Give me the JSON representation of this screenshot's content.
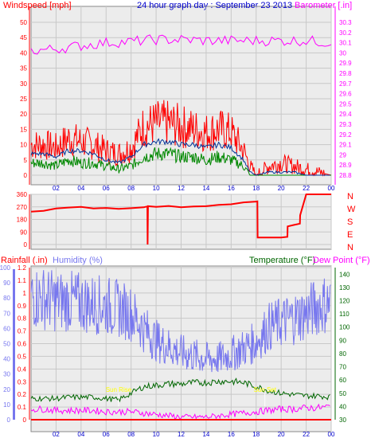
{
  "header": {
    "windspeed_label": "Windspeed [mph]",
    "date_title": "24 hour graph day : September 23 2013",
    "barometer_label": "Barometer [.in]"
  },
  "rain_header": {
    "rainfall_label": "Rainfall (.in)",
    "humidity_label": "Humidity (%)",
    "temperature_label": "Temperature (°F)",
    "dewpoint_label": "Dew Point (°F)"
  },
  "colors": {
    "windspeed": "#ff0000",
    "wind_avg": "#003399",
    "wind_low": "#008800",
    "barometer": "#ff00ff",
    "direction": "#ff0000",
    "rainfall": "#ff0000",
    "humidity": "#7777ee",
    "temperature": "#006600",
    "dewpoint": "#ff00ff",
    "background": "#ececec",
    "sun_markers": "#ffff00"
  },
  "chart_data": [
    {
      "type": "line",
      "panel": "wind_baro",
      "x_ticks": [
        "02",
        "04",
        "06",
        "08",
        "10",
        "12",
        "14",
        "16",
        "18",
        "20",
        "22",
        "00"
      ],
      "wind_axis": {
        "ticks": [
          "0",
          "5",
          "10",
          "15",
          "20",
          "25",
          "30",
          "35",
          "40",
          "45",
          "50"
        ],
        "ylim": [
          0,
          50
        ]
      },
      "baro_axis": {
        "ticks": [
          "28.8",
          "28.9",
          "29",
          "29.1",
          "29.2",
          "29.3",
          "29.4",
          "29.5",
          "29.6",
          "29.7",
          "29.8",
          "29.9",
          "30",
          "30.1",
          "30.2",
          "30.3"
        ],
        "ylim": [
          28.8,
          30.3
        ]
      },
      "series": [
        {
          "name": "Windspeed [mph]",
          "x": [
            0,
            1,
            2,
            3,
            4,
            5,
            6,
            7,
            8,
            9,
            10,
            11,
            12,
            13,
            14,
            15,
            16,
            17,
            17.5,
            18,
            19,
            20,
            21,
            22,
            23,
            24
          ],
          "values": [
            10,
            10,
            9,
            12,
            11,
            10,
            8,
            7,
            9,
            16,
            17,
            17,
            16,
            15,
            14,
            15,
            14,
            8,
            3,
            0,
            3,
            4,
            3,
            2,
            1,
            0
          ]
        },
        {
          "name": "Wind average",
          "x": [
            0,
            1,
            2,
            3,
            4,
            5,
            6,
            7,
            8,
            9,
            10,
            11,
            12,
            13,
            14,
            15,
            16,
            17,
            17.5,
            18,
            19,
            20,
            21,
            22,
            23,
            24
          ],
          "values": [
            7,
            7,
            6,
            8,
            8,
            7,
            5,
            4,
            6,
            10,
            11,
            11,
            10,
            10,
            9,
            10,
            9,
            5,
            1,
            0,
            1,
            1,
            1,
            0,
            0,
            0
          ]
        },
        {
          "name": "Wind low",
          "x": [
            0,
            1,
            2,
            3,
            4,
            5,
            6,
            7,
            8,
            9,
            10,
            11,
            12,
            13,
            14,
            15,
            16,
            17,
            17.5,
            18,
            19,
            20,
            21,
            22,
            23,
            24
          ],
          "values": [
            4,
            4,
            3,
            5,
            4,
            4,
            3,
            2,
            3,
            6,
            7,
            7,
            6,
            6,
            5,
            6,
            5,
            3,
            0,
            0,
            0,
            0,
            0,
            0,
            0,
            0
          ]
        },
        {
          "name": "Barometer [.in]",
          "x": [
            0,
            2,
            4,
            6,
            8,
            10,
            12,
            14,
            16,
            18,
            20,
            22,
            24
          ],
          "values": [
            30.02,
            30.04,
            30.07,
            30.1,
            30.11,
            30.13,
            30.13,
            30.12,
            30.12,
            30.12,
            30.12,
            30.12,
            30.1
          ]
        }
      ]
    },
    {
      "type": "line",
      "panel": "direction",
      "x_ticks": [
        "02",
        "04",
        "06",
        "08",
        "10",
        "12",
        "14",
        "16",
        "18",
        "20",
        "22",
        "00"
      ],
      "y_axis": {
        "ticks": [
          "0",
          "90",
          "180",
          "270",
          "360"
        ],
        "ylim": [
          0,
          360
        ]
      },
      "compass_labels": [
        "N",
        "W",
        "S",
        "E",
        "N"
      ],
      "series": [
        {
          "name": "Wind direction",
          "x": [
            0,
            1,
            2,
            3,
            4,
            5,
            6,
            7,
            8,
            9,
            9.3,
            9.32,
            9.35,
            10,
            11,
            12,
            13,
            14,
            15,
            16,
            17,
            18,
            18.1,
            18.12,
            19,
            20,
            20.5,
            20.52,
            21,
            21.5,
            21.52,
            22,
            24
          ],
          "values": [
            240,
            245,
            255,
            265,
            270,
            262,
            258,
            255,
            258,
            265,
            270,
            0,
            270,
            272,
            275,
            270,
            268,
            275,
            280,
            290,
            300,
            308,
            310,
            50,
            50,
            50,
            55,
            130,
            140,
            150,
            210,
            360,
            360
          ]
        }
      ]
    },
    {
      "type": "line",
      "panel": "rain_humidity_temperature",
      "x_ticks": [
        "02",
        "04",
        "06",
        "08",
        "10",
        "12",
        "14",
        "16",
        "18",
        "20",
        "22",
        "00"
      ],
      "rainfall_axis": {
        "ticks": [
          "0",
          "0.1",
          "0.2",
          "0.3",
          "0.4",
          "0.5",
          "0.6",
          "0.7",
          "0.8",
          "0.9",
          "1",
          "1.1",
          "1.2"
        ],
        "ylim": [
          0,
          1.2
        ]
      },
      "humidity_axis": {
        "ticks": [
          "0",
          "10",
          "20",
          "30",
          "40",
          "50",
          "60",
          "70",
          "80",
          "90",
          "100"
        ],
        "ylim": [
          0,
          100
        ]
      },
      "temperature_axis": {
        "ticks": [
          "30",
          "40",
          "50",
          "60",
          "70",
          "80",
          "90",
          "100",
          "110",
          "120",
          "130",
          "140"
        ],
        "ylim": [
          30,
          145
        ]
      },
      "sun_markers": [
        "Sun Rise",
        "Sun Set"
      ],
      "sun_times": [
        7,
        18.7
      ],
      "series": [
        {
          "name": "Rainfall (.in)",
          "x": [
            0,
            24
          ],
          "values": [
            0,
            0
          ]
        },
        {
          "name": "Humidity (%)",
          "x": [
            0,
            1,
            2,
            3,
            4,
            5,
            6,
            7,
            8,
            9,
            10,
            11,
            12,
            13,
            14,
            15,
            16,
            17,
            18,
            19,
            20,
            21,
            22,
            23,
            24
          ],
          "values": [
            81,
            80,
            78,
            78,
            77,
            76,
            75,
            73,
            70,
            60,
            52,
            48,
            44,
            42,
            40,
            40,
            43,
            47,
            51,
            61,
            64,
            67,
            70,
            75,
            77
          ]
        },
        {
          "name": "Temperature (°F)",
          "x": [
            0,
            1,
            2,
            3,
            4,
            5,
            6,
            7,
            8,
            9,
            10,
            11,
            12,
            13,
            14,
            15,
            16,
            17,
            18,
            19,
            20,
            21,
            22,
            23,
            24
          ],
          "values": [
            46,
            46,
            46,
            47,
            47,
            47,
            46,
            45,
            50,
            55,
            56,
            57,
            57,
            58,
            58,
            59,
            59,
            58,
            55,
            52,
            50,
            49,
            48,
            48,
            47
          ]
        },
        {
          "name": "Dew Point (°F)",
          "x": [
            0,
            1,
            2,
            3,
            4,
            5,
            6,
            7,
            8,
            9,
            10,
            11,
            12,
            13,
            14,
            15,
            16,
            17,
            18,
            19,
            20,
            21,
            22,
            23,
            24
          ],
          "values": [
            38,
            38,
            37,
            37,
            37,
            37,
            36,
            36,
            36,
            35,
            34,
            33,
            32,
            32,
            32,
            33,
            34,
            35,
            36,
            37,
            38,
            38,
            39,
            39,
            40
          ]
        }
      ]
    }
  ]
}
